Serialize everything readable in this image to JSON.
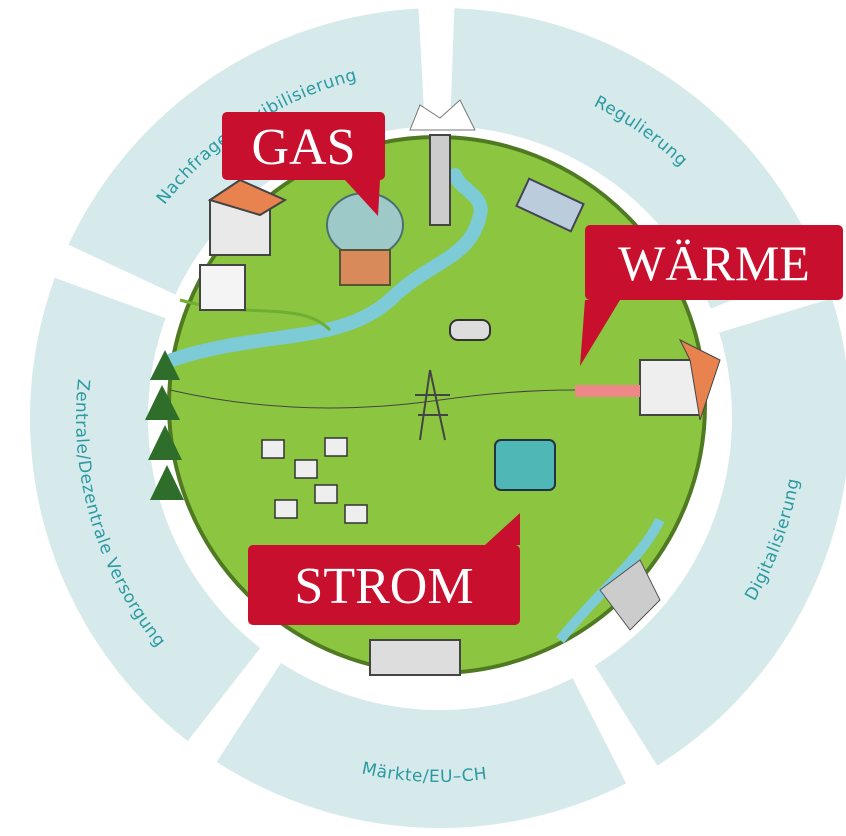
{
  "ring": {
    "segments": [
      {
        "label": "Nachfrage/Flexibilisierung"
      },
      {
        "label": "Regulierung"
      },
      {
        "label": "Digitalisierung"
      },
      {
        "label": "Märkte/EU–CH"
      },
      {
        "label": "Zentrale/Dezentrale Versorgung"
      }
    ]
  },
  "callouts": [
    {
      "label": "GAS"
    },
    {
      "label": "WÄRME"
    },
    {
      "label": "STROM"
    }
  ]
}
